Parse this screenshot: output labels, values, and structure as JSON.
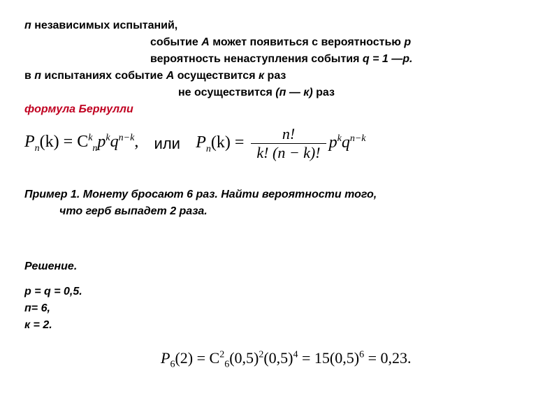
{
  "intro": {
    "line1_prefix": "п ",
    "line1_main": "независимых испытаний,",
    "line2_pre": "событие ",
    "line2_var": "А ",
    "line2_post": "может появиться с вероятностью ",
    "line2_p": "р",
    "line3": "вероятность ненаступления  события  ",
    "line3_eq": "q = 1 —р.",
    "line4_pre": "в ",
    "line4_n": "п ",
    "line4_mid": "испытаниях событие ",
    "line4_a": "А ",
    "line4_post": "осуществится ",
    "line4_k": "к ",
    "line4_end": "раз",
    "line5": "не осуществится ",
    "line5_eq": "(п — к) ",
    "line5_end": "раз",
    "bernoulli": "  формула Бернулли"
  },
  "formula1": {
    "left": "P",
    "sub_n": "n",
    "k_paren": "(k) = C",
    "sub_n2": "n",
    "sup_k": "k",
    "p": "p",
    "sup_k2": "k",
    "q": "q",
    "sup_nk": "n−k",
    "comma": ",",
    "ili": "или",
    "right_p": "P",
    "right_k": "(k) = ",
    "frac_num": "n!",
    "frac_den": "k! (n − k)!",
    "right_pq": "p",
    "right_sup_k": "k",
    "right_q": "q",
    "right_sup_nk": "n−k"
  },
  "example": {
    "title_pre": "Пример 1. ",
    "title_main": "Монету бросают 6 раз. Найти вероятности того,",
    "title_line2": "что герб выпадет  2 раза."
  },
  "solution": {
    "title": "Решение.",
    "p1": "p = q = 0,5.",
    "p2": "п= 6,",
    "p3": "к = 2."
  },
  "formula2": {
    "p": "P",
    "sub6": "6",
    "open": "(2) = C",
    "sub6_2": "6",
    "sup2": "2",
    "half1": "(0,5)",
    "sup2b": "2",
    "half2": "(0,5)",
    "sup4": "4",
    "eq15": " = 15(0,5)",
    "sup6": "6",
    "result": " = 0,23."
  },
  "colors": {
    "text": "#000000",
    "red": "#c00020",
    "bg": "#ffffff"
  }
}
